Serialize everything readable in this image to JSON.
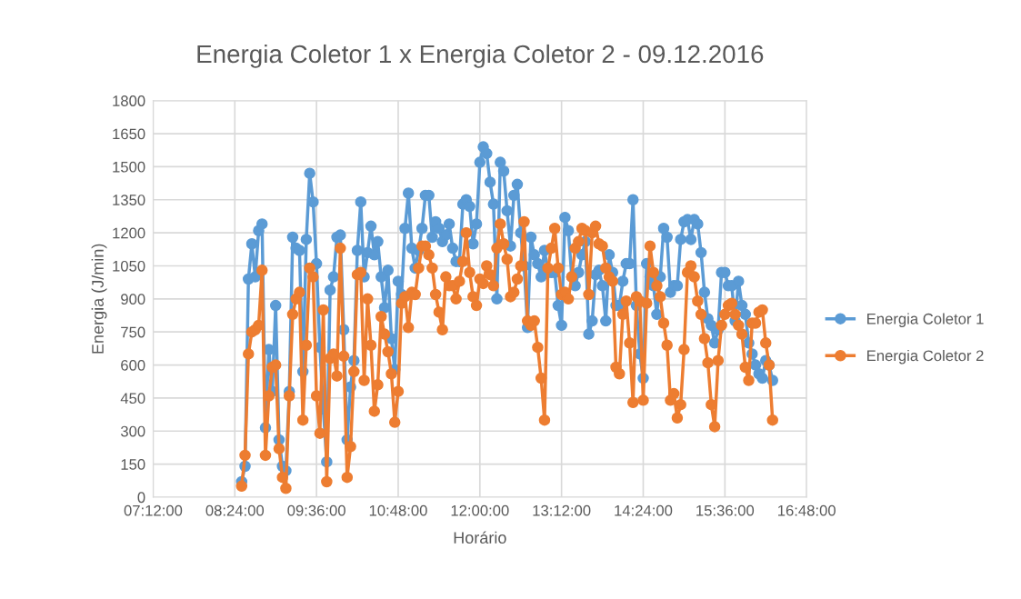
{
  "chart_data": {
    "type": "line",
    "title": "Energia Coletor 1 x Energia Coletor 2 - 09.12.2016",
    "xlabel": "Horário",
    "ylabel": "Energia (J/min)",
    "x": [
      8.5,
      8.55,
      8.6,
      8.65,
      8.7,
      8.75,
      8.8,
      8.85,
      8.9,
      8.95,
      9.0,
      9.05,
      9.1,
      9.15,
      9.2,
      9.25,
      9.3,
      9.35,
      9.4,
      9.45,
      9.5,
      9.55,
      9.6,
      9.65,
      9.7,
      9.75,
      9.8,
      9.85,
      9.9,
      9.95,
      10.0,
      10.05,
      10.1,
      10.15,
      10.2,
      10.25,
      10.3,
      10.35,
      10.4,
      10.45,
      10.5,
      10.55,
      10.6,
      10.65,
      10.7,
      10.75,
      10.8,
      10.85,
      10.9,
      10.95,
      11.0,
      11.05,
      11.1,
      11.15,
      11.2,
      11.25,
      11.3,
      11.35,
      11.4,
      11.45,
      11.5,
      11.55,
      11.6,
      11.65,
      11.7,
      11.75,
      11.8,
      11.85,
      11.9,
      11.95,
      12.0,
      12.05,
      12.1,
      12.15,
      12.2,
      12.25,
      12.3,
      12.35,
      12.4,
      12.45,
      12.5,
      12.55,
      12.6,
      12.65,
      12.7,
      12.75,
      12.8,
      12.85,
      12.9,
      12.95,
      13.0,
      13.05,
      13.1,
      13.15,
      13.2,
      13.25,
      13.3,
      13.35,
      13.4,
      13.45,
      13.5,
      13.55,
      13.6,
      13.65,
      13.7,
      13.75,
      13.8,
      13.85,
      13.9,
      13.95,
      14.0,
      14.05,
      14.1,
      14.15,
      14.2,
      14.25,
      14.3,
      14.35,
      14.4,
      14.45,
      14.5,
      14.55,
      14.6,
      14.65,
      14.7,
      14.75,
      14.8,
      14.85,
      14.9,
      14.95,
      15.0,
      15.05,
      15.1,
      15.15,
      15.2,
      15.25,
      15.3,
      15.35,
      15.4,
      15.45,
      15.5,
      15.55,
      15.6,
      15.65,
      15.7,
      15.75,
      15.8,
      15.85,
      15.9,
      15.95,
      16.0,
      16.05,
      16.1,
      16.15,
      16.2,
      16.25,
      16.3
    ],
    "series": [
      {
        "name": "Energia Coletor 1",
        "color": "#5b9bd5",
        "values": [
          70,
          140,
          990,
          1150,
          1000,
          1210,
          1240,
          315,
          670,
          480,
          870,
          260,
          140,
          120,
          480,
          1180,
          1130,
          1120,
          570,
          1170,
          1470,
          1340,
          1060,
          680,
          400,
          160,
          940,
          1000,
          1180,
          1190,
          760,
          260,
          500,
          620,
          1120,
          1340,
          1000,
          1110,
          1230,
          1100,
          1160,
          1000,
          860,
          1030,
          720,
          580,
          980,
          920,
          1220,
          1380,
          1130,
          1040,
          1120,
          1220,
          1370,
          1370,
          1180,
          1250,
          1220,
          1160,
          1190,
          1240,
          1130,
          1070,
          1070,
          1330,
          1350,
          1320,
          1150,
          1240,
          1520,
          1590,
          1560,
          1430,
          1330,
          900,
          1520,
          1480,
          1300,
          1140,
          1370,
          1420,
          1200,
          1050,
          770,
          1180,
          1100,
          1060,
          1000,
          1120,
          1020,
          1020,
          1020,
          870,
          780,
          1270,
          1210,
          1000,
          960,
          1020,
          1100,
          1160,
          740,
          800,
          1010,
          1030,
          960,
          800,
          1100,
          1020,
          870,
          870,
          980,
          1060,
          1060,
          1350,
          870,
          650,
          540,
          1060,
          1000,
          960,
          830,
          1000,
          1220,
          1180,
          930,
          960,
          960,
          1170,
          1250,
          1260,
          1170,
          1260,
          1240,
          1110,
          930,
          810,
          780,
          700,
          760,
          1020,
          1020,
          960,
          960,
          800,
          980,
          870,
          830,
          700,
          650,
          600,
          560,
          540,
          620,
          600,
          530
        ]
      },
      {
        "name": "Energia Coletor 2",
        "color": "#ed7d31",
        "values": [
          50,
          190,
          650,
          750,
          760,
          780,
          1030,
          190,
          460,
          590,
          600,
          220,
          90,
          40,
          460,
          830,
          900,
          930,
          350,
          690,
          1040,
          1000,
          460,
          290,
          850,
          70,
          630,
          650,
          550,
          1130,
          640,
          90,
          230,
          570,
          1010,
          1020,
          530,
          900,
          690,
          390,
          510,
          820,
          740,
          660,
          560,
          340,
          480,
          880,
          910,
          770,
          930,
          920,
          1040,
          1140,
          1140,
          1100,
          1040,
          920,
          840,
          760,
          1000,
          960,
          960,
          900,
          980,
          1070,
          1200,
          1020,
          910,
          870,
          990,
          970,
          1050,
          1010,
          960,
          1130,
          1240,
          1150,
          1080,
          910,
          930,
          990,
          1050,
          1250,
          800,
          780,
          800,
          680,
          540,
          350,
          1040,
          1130,
          1220,
          1040,
          920,
          930,
          900,
          1000,
          1130,
          1160,
          1220,
          1210,
          920,
          1200,
          1230,
          1150,
          1140,
          1040,
          1000,
          980,
          590,
          560,
          830,
          890,
          700,
          430,
          910,
          890,
          440,
          880,
          1140,
          1020,
          960,
          910,
          790,
          690,
          440,
          470,
          360,
          420,
          670,
          1020,
          1050,
          1000,
          890,
          830,
          720,
          610,
          420,
          320,
          620,
          780,
          830,
          870,
          880,
          830,
          780,
          740,
          590,
          530,
          790,
          790,
          840,
          850,
          700,
          600,
          350
        ]
      }
    ],
    "xlim": [
      7.2,
      16.8
    ],
    "xticks": [
      {
        "value": 7.2,
        "label": "07:12:00"
      },
      {
        "value": 8.4,
        "label": "08:24:00"
      },
      {
        "value": 9.6,
        "label": "09:36:00"
      },
      {
        "value": 10.8,
        "label": "10:48:00"
      },
      {
        "value": 12.0,
        "label": "12:00:00"
      },
      {
        "value": 13.2,
        "label": "13:12:00"
      },
      {
        "value": 14.4,
        "label": "14:24:00"
      },
      {
        "value": 15.6,
        "label": "15:36:00"
      },
      {
        "value": 16.8,
        "label": "16:48:00"
      }
    ],
    "ylim": [
      0,
      1800
    ],
    "yticks": [
      0,
      150,
      300,
      450,
      600,
      750,
      900,
      1050,
      1200,
      1350,
      1500,
      1650,
      1800
    ],
    "grid": true,
    "legend": "right",
    "marker": "circle",
    "line_style": "solid"
  }
}
